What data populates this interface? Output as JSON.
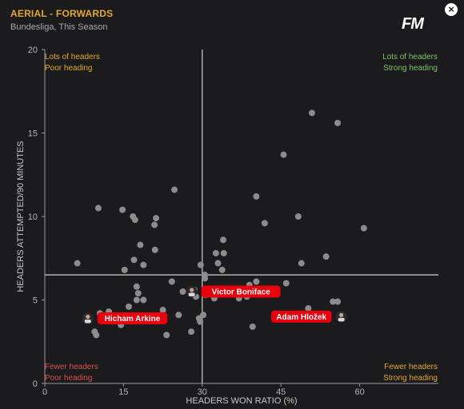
{
  "header": {
    "title": "AERIAL - FORWARDS",
    "subtitle": "Bundesliga, This Season",
    "logo": "FM",
    "close_icon": "close-icon"
  },
  "colors": {
    "background": "#1b1b1d",
    "title": "#e1a82f",
    "point": "#8c8c8c",
    "highlight": "#e8000d",
    "quadrant_top_left": "#e1a82f",
    "quadrant_top_right": "#7fbf6a",
    "quadrant_bottom_left": "#d9534f",
    "quadrant_bottom_right": "#e1a82f"
  },
  "chart_data": {
    "type": "scatter",
    "xlabel": "HEADERS WON RATIO (%)",
    "ylabel": "HEADERS ATTEMPTED/90 MINUTES",
    "xlim": [
      0,
      75
    ],
    "ylim": [
      0,
      20
    ],
    "xticks": [
      0,
      15,
      30,
      45,
      60
    ],
    "yticks": [
      0,
      5,
      10,
      15,
      20
    ],
    "reference_lines": {
      "x": 30,
      "y": 6.5
    },
    "grid": false,
    "quadrant_labels": {
      "top_left": [
        "Lots of headers",
        "Poor heading"
      ],
      "top_right": [
        "Lots of headers",
        "Strong heading"
      ],
      "bottom_left": [
        "Fewer headers",
        "Poor heading"
      ],
      "bottom_right": [
        "Fewer headers",
        "Strong heading"
      ]
    },
    "points": [
      [
        6.2,
        7.2
      ],
      [
        8.5,
        3.8
      ],
      [
        9.5,
        3.1
      ],
      [
        9.8,
        2.9
      ],
      [
        10.5,
        4.2
      ],
      [
        11.2,
        3.9
      ],
      [
        10.2,
        10.5
      ],
      [
        12.2,
        4.3
      ],
      [
        13.5,
        3.9
      ],
      [
        14.5,
        3.5
      ],
      [
        14.8,
        10.4
      ],
      [
        15.2,
        6.8
      ],
      [
        16.0,
        4.6
      ],
      [
        16.8,
        10.0
      ],
      [
        17.2,
        9.8
      ],
      [
        17.0,
        7.4
      ],
      [
        17.5,
        5.8
      ],
      [
        17.8,
        5.4
      ],
      [
        17.5,
        5.0
      ],
      [
        18.2,
        8.3
      ],
      [
        18.8,
        7.1
      ],
      [
        18.8,
        5.0
      ],
      [
        20.9,
        9.5
      ],
      [
        21.0,
        8.0
      ],
      [
        21.2,
        9.9
      ],
      [
        22.5,
        4.4
      ],
      [
        23.2,
        2.9
      ],
      [
        24.2,
        6.1
      ],
      [
        24.7,
        11.6
      ],
      [
        25.5,
        4.1
      ],
      [
        26.3,
        5.5
      ],
      [
        27.9,
        3.1
      ],
      [
        28.5,
        5.6
      ],
      [
        28.8,
        5.2
      ],
      [
        29.4,
        3.9
      ],
      [
        29.6,
        3.7
      ],
      [
        29.7,
        7.1
      ],
      [
        30.2,
        4.1
      ],
      [
        30.5,
        6.3
      ],
      [
        30.5,
        6.5
      ],
      [
        30.6,
        5.3
      ],
      [
        31.3,
        5.5
      ],
      [
        32.3,
        5.1
      ],
      [
        32.6,
        7.8
      ],
      [
        33.0,
        7.2
      ],
      [
        33.8,
        6.8
      ],
      [
        34.0,
        8.6
      ],
      [
        34.1,
        7.8
      ],
      [
        34.6,
        5.6
      ],
      [
        35.6,
        5.6
      ],
      [
        37.0,
        5.1
      ],
      [
        38.5,
        5.2
      ],
      [
        39.0,
        5.9
      ],
      [
        39.6,
        3.4
      ],
      [
        40.3,
        11.2
      ],
      [
        40.3,
        6.1
      ],
      [
        41.3,
        5.5
      ],
      [
        41.9,
        9.6
      ],
      [
        45.5,
        13.7
      ],
      [
        46.0,
        6.0
      ],
      [
        48.1,
        4.0
      ],
      [
        48.3,
        10.0
      ],
      [
        48.9,
        7.2
      ],
      [
        50.2,
        4.5
      ],
      [
        50.9,
        16.2
      ],
      [
        53.6,
        7.6
      ],
      [
        54.9,
        4.9
      ],
      [
        55.8,
        15.6
      ],
      [
        55.8,
        4.9
      ],
      [
        60.8,
        9.3
      ]
    ],
    "highlighted": [
      {
        "name": "Victor Boniface",
        "x": 28.0,
        "y": 5.5,
        "label_side": "right",
        "avatar_icon": "player-avatar-icon"
      },
      {
        "name": "Hicham Arkine",
        "x": 8.2,
        "y": 3.9,
        "label_side": "right",
        "avatar_icon": "player-avatar-icon"
      },
      {
        "name": "Adam Hložek",
        "x": 56.5,
        "y": 4.0,
        "label_side": "left",
        "avatar_icon": "player-avatar-icon"
      }
    ]
  }
}
